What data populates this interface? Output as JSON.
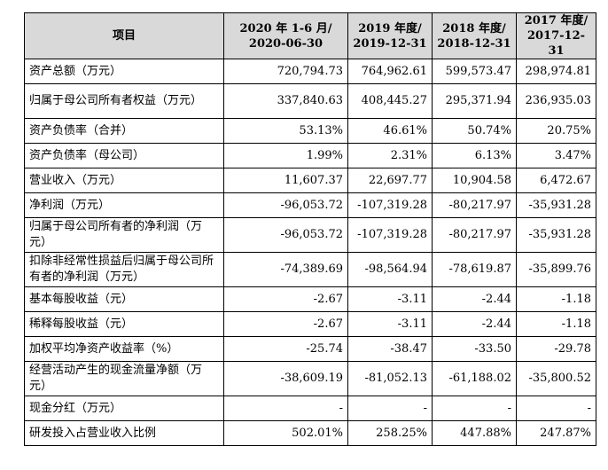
{
  "table": {
    "headers": [
      [
        "项目"
      ],
      [
        "2020 年 1-6 月/",
        "2020-06-30"
      ],
      [
        "2019 年度/",
        "2019-12-31"
      ],
      [
        "2018 年度/",
        "2018-12-31"
      ],
      [
        "2017 年度/",
        "2017-12-31"
      ]
    ],
    "rows": [
      {
        "label": "资产总额（万元）",
        "values": [
          "720,794.73",
          "764,962.61",
          "599,573.47",
          "298,974.81"
        ]
      },
      {
        "label": "归属于母公司所有者权益（万元）",
        "values": [
          "337,840.63",
          "408,445.27",
          "295,371.94",
          "236,935.03"
        ]
      },
      {
        "label": "资产负债率（合并）",
        "values": [
          "53.13%",
          "46.61%",
          "50.74%",
          "20.75%"
        ]
      },
      {
        "label": "资产负债率（母公司）",
        "values": [
          "1.99%",
          "2.31%",
          "6.13%",
          "3.47%"
        ]
      },
      {
        "label": "营业收入（万元）",
        "values": [
          "11,607.37",
          "22,697.77",
          "10,904.58",
          "6,472.67"
        ]
      },
      {
        "label": "净利润（万元）",
        "values": [
          "-96,053.72",
          "-107,319.28",
          "-80,217.97",
          "-35,931.28"
        ]
      },
      {
        "label": "归属于母公司所有者的净利润（万元）",
        "values": [
          "-96,053.72",
          "-107,319.28",
          "-80,217.97",
          "-35,931.28"
        ]
      },
      {
        "label": "扣除非经常性损益后归属于母公司所有者的净利润（万元）",
        "values": [
          "-74,389.69",
          "-98,564.94",
          "-78,619.87",
          "-35,899.76"
        ]
      },
      {
        "label": "基本每股收益（元）",
        "values": [
          "-2.67",
          "-3.11",
          "-2.44",
          "-1.18"
        ]
      },
      {
        "label": "稀释每股收益（元）",
        "values": [
          "-2.67",
          "-3.11",
          "-2.44",
          "-1.18"
        ]
      },
      {
        "label": "加权平均净资产收益率（%）",
        "values": [
          "-25.74",
          "-38.47",
          "-33.50",
          "-29.78"
        ]
      },
      {
        "label": "经营活动产生的现金流量净额（万元）",
        "values": [
          "-38,609.19",
          "-81,052.13",
          "-61,188.02",
          "-35,800.52"
        ]
      },
      {
        "label": "现金分红（万元）",
        "values": [
          "-",
          "-",
          "-",
          "-"
        ]
      },
      {
        "label": "研发投入占营业收入比例",
        "values": [
          "502.01%",
          "258.25%",
          "447.88%",
          "247.87%"
        ]
      }
    ]
  }
}
